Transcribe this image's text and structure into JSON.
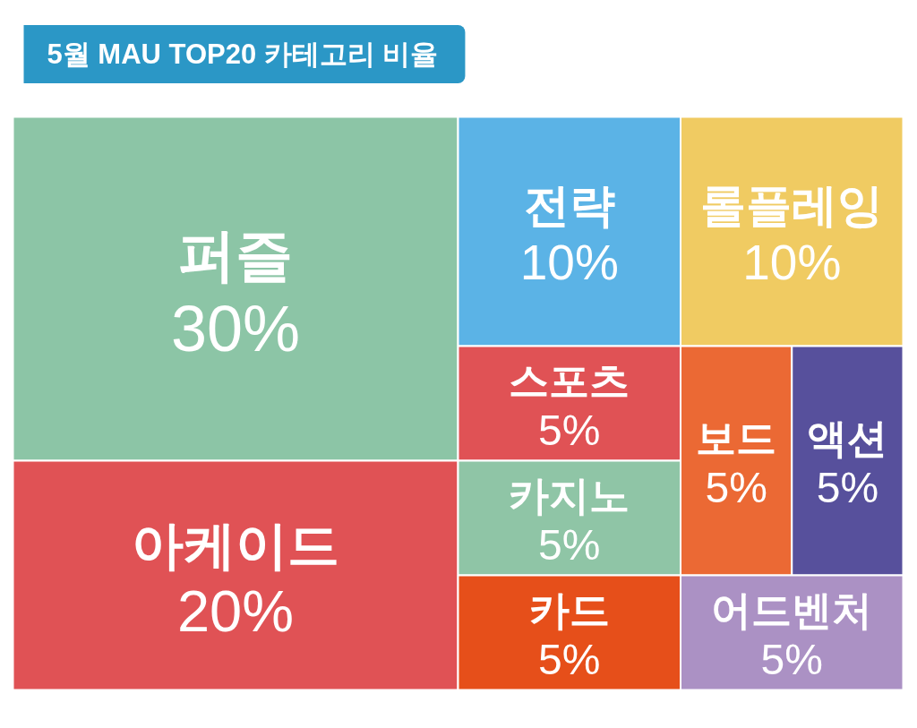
{
  "chart_data": {
    "type": "other",
    "title": "5월 MAU TOP20 카테고리 비율",
    "categories": [
      "퍼즐",
      "아케이드",
      "전략",
      "롤플레잉",
      "스포츠",
      "카지노",
      "카드",
      "보드",
      "액션",
      "어드벤처"
    ],
    "values": [
      30,
      20,
      10,
      10,
      5,
      5,
      5,
      5,
      5,
      5
    ],
    "value_labels": [
      "30%",
      "20%",
      "10%",
      "10%",
      "5%",
      "5%",
      "5%",
      "5%",
      "5%",
      "5%"
    ],
    "colors": [
      "#8cc5a6",
      "#e05255",
      "#5bb3e6",
      "#f0cb62",
      "#e05255",
      "#8fc5a6",
      "#e64f1a",
      "#eb6934",
      "#57509c",
      "#ab91c4"
    ]
  }
}
